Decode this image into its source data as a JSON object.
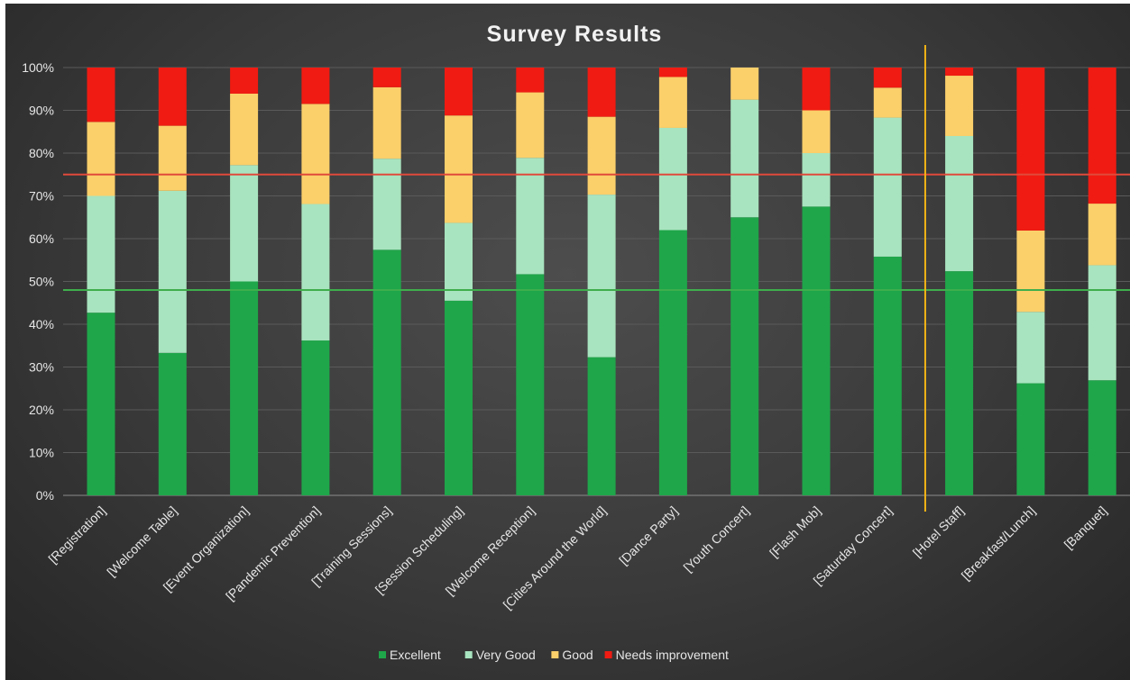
{
  "chart_data": {
    "type": "bar",
    "stacked": "percent",
    "title": "Survey Results",
    "xlabel": "",
    "ylabel": "",
    "ylim": [
      0,
      100
    ],
    "yticks": [
      "0%",
      "10%",
      "20%",
      "30%",
      "40%",
      "50%",
      "60%",
      "70%",
      "80%",
      "90%",
      "100%"
    ],
    "categories": [
      "[Registration]",
      "[Welcome Table]",
      "[Event Organization]",
      "[Pandemic Prevention]",
      "[Training Sessions]",
      "[Session Scheduling]",
      "[Welcome Reception]",
      "[Cities Around the World]",
      "[Dance Party]",
      "[Youth Concert]",
      "[Flash Mob]",
      "[Saturday Concert]",
      "[Hotel Staff]",
      "[Breakfast/Lunch]",
      "[Banquet]"
    ],
    "series": [
      {
        "name": "Excellent",
        "color": "#1fa64a",
        "values": [
          42.7,
          33.3,
          50.0,
          36.2,
          57.4,
          45.5,
          51.7,
          32.3,
          62.0,
          65.0,
          67.5,
          55.8,
          52.4,
          26.2,
          26.9
        ]
      },
      {
        "name": "Very Good",
        "color": "#a8e4bf",
        "values": [
          27.3,
          37.9,
          27.2,
          31.9,
          21.3,
          18.2,
          27.2,
          38.0,
          23.9,
          27.5,
          12.5,
          32.5,
          31.6,
          16.7,
          26.9
        ]
      },
      {
        "name": "Good",
        "color": "#fbcf6a",
        "values": [
          17.3,
          15.2,
          16.7,
          23.4,
          16.7,
          25.1,
          15.3,
          18.2,
          11.9,
          7.5,
          10.0,
          7.0,
          14.1,
          19.0,
          14.4
        ]
      },
      {
        "name": "Needs improvement",
        "color": "#f01b12",
        "values": [
          12.7,
          13.6,
          6.1,
          8.5,
          4.6,
          11.2,
          5.8,
          11.5,
          2.2,
          0.0,
          10.0,
          4.7,
          1.9,
          38.1,
          31.8
        ]
      }
    ],
    "reference_lines": [
      {
        "axis": "y",
        "value": 75,
        "color": "#e04a3a",
        "label": ""
      },
      {
        "axis": "y",
        "value": 48,
        "color": "#3fae4c",
        "label": ""
      },
      {
        "axis": "x",
        "between": [
          "[Saturday Concert]",
          "[Hotel Staff]"
        ],
        "color": "#f2b416",
        "label": ""
      }
    ],
    "grid": true,
    "legend": "bottom",
    "background": "#3c3c3c"
  }
}
